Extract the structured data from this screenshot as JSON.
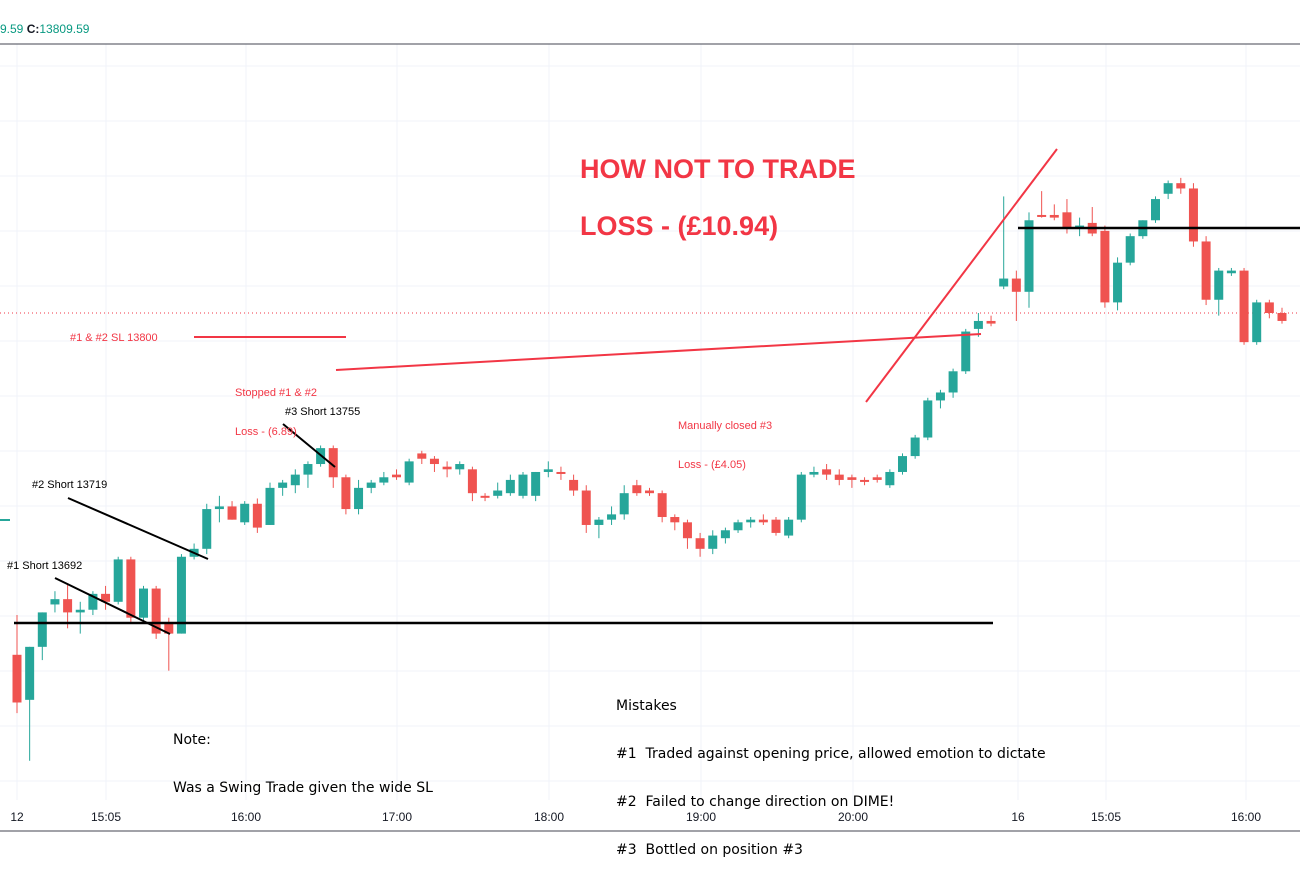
{
  "header": {
    "partial_value": "9.59",
    "close_label": "C:",
    "close_value": "13809.59"
  },
  "chart_data": {
    "type": "candlestick",
    "title": "",
    "x_ticks": [
      "12",
      "15:05",
      "16:00",
      "17:00",
      "18:00",
      "19:00",
      "20:00",
      "16",
      "15:05",
      "16:00"
    ],
    "price_levels": {
      "opening_line": 13692,
      "stop_loss": 13800,
      "dotted_current": 13806
    },
    "candles": [
      {
        "o": 13680,
        "h": 13695,
        "l": 13658,
        "c": 13662,
        "dir": "down"
      },
      {
        "o": 13663,
        "h": 13683,
        "l": 13640,
        "c": 13683,
        "dir": "up"
      },
      {
        "o": 13683,
        "h": 13696,
        "l": 13678,
        "c": 13696,
        "dir": "up"
      },
      {
        "o": 13699,
        "h": 13704,
        "l": 13696,
        "c": 13701,
        "dir": "up"
      },
      {
        "o": 13701,
        "h": 13707,
        "l": 13690,
        "c": 13696,
        "dir": "down"
      },
      {
        "o": 13697,
        "h": 13700,
        "l": 13688,
        "c": 13696,
        "dir": "up"
      },
      {
        "o": 13697,
        "h": 13704,
        "l": 13695,
        "c": 13703,
        "dir": "up"
      },
      {
        "o": 13703,
        "h": 13706,
        "l": 13697,
        "c": 13700,
        "dir": "down"
      },
      {
        "o": 13700,
        "h": 13717,
        "l": 13699,
        "c": 13716,
        "dir": "up"
      },
      {
        "o": 13716,
        "h": 13717,
        "l": 13692,
        "c": 13694,
        "dir": "down"
      },
      {
        "o": 13694,
        "h": 13706,
        "l": 13692,
        "c": 13705,
        "dir": "up"
      },
      {
        "o": 13705,
        "h": 13706,
        "l": 13686,
        "c": 13688,
        "dir": "down"
      },
      {
        "o": 13688,
        "h": 13694,
        "l": 13674,
        "c": 13692,
        "dir": "down"
      },
      {
        "o": 13688,
        "h": 13718,
        "l": 13688,
        "c": 13717,
        "dir": "up"
      },
      {
        "o": 13717,
        "h": 13722,
        "l": 13716,
        "c": 13720,
        "dir": "up"
      },
      {
        "o": 13720,
        "h": 13737,
        "l": 13718,
        "c": 13735,
        "dir": "up"
      },
      {
        "o": 13735,
        "h": 13740,
        "l": 13730,
        "c": 13736,
        "dir": "up"
      },
      {
        "o": 13736,
        "h": 13738,
        "l": 13731,
        "c": 13731,
        "dir": "down"
      },
      {
        "o": 13730,
        "h": 13738,
        "l": 13729,
        "c": 13737,
        "dir": "up"
      },
      {
        "o": 13737,
        "h": 13739,
        "l": 13726,
        "c": 13728,
        "dir": "down"
      },
      {
        "o": 13729,
        "h": 13745,
        "l": 13729,
        "c": 13743,
        "dir": "up"
      },
      {
        "o": 13743,
        "h": 13746,
        "l": 13740,
        "c": 13745,
        "dir": "up"
      },
      {
        "o": 13744,
        "h": 13750,
        "l": 13741,
        "c": 13748,
        "dir": "up"
      },
      {
        "o": 13748,
        "h": 13753,
        "l": 13743,
        "c": 13752,
        "dir": "up"
      },
      {
        "o": 13752,
        "h": 13759,
        "l": 13751,
        "c": 13758,
        "dir": "up"
      },
      {
        "o": 13758,
        "h": 13759,
        "l": 13743,
        "c": 13747,
        "dir": "down"
      },
      {
        "o": 13747,
        "h": 13748,
        "l": 13733,
        "c": 13735,
        "dir": "down"
      },
      {
        "o": 13735,
        "h": 13746,
        "l": 13733,
        "c": 13743,
        "dir": "up"
      },
      {
        "o": 13743,
        "h": 13746,
        "l": 13741,
        "c": 13745,
        "dir": "up"
      },
      {
        "o": 13745,
        "h": 13749,
        "l": 13744,
        "c": 13747,
        "dir": "up"
      },
      {
        "o": 13748,
        "h": 13750,
        "l": 13746,
        "c": 13747,
        "dir": "down"
      },
      {
        "o": 13745,
        "h": 13754,
        "l": 13744,
        "c": 13753,
        "dir": "up"
      },
      {
        "o": 13756,
        "h": 13757,
        "l": 13752,
        "c": 13754,
        "dir": "down"
      },
      {
        "o": 13754,
        "h": 13755,
        "l": 13749,
        "c": 13752,
        "dir": "down"
      },
      {
        "o": 13750,
        "h": 13753,
        "l": 13747,
        "c": 13751,
        "dir": "down"
      },
      {
        "o": 13750,
        "h": 13753,
        "l": 13748,
        "c": 13752,
        "dir": "up"
      },
      {
        "o": 13750,
        "h": 13751,
        "l": 13738,
        "c": 13741,
        "dir": "down"
      },
      {
        "o": 13740,
        "h": 13741,
        "l": 13738,
        "c": 13740,
        "dir": "down"
      },
      {
        "o": 13740,
        "h": 13745,
        "l": 13739,
        "c": 13742,
        "dir": "up"
      },
      {
        "o": 13741,
        "h": 13748,
        "l": 13740,
        "c": 13746,
        "dir": "up"
      },
      {
        "o": 13740,
        "h": 13749,
        "l": 13739,
        "c": 13748,
        "dir": "up"
      },
      {
        "o": 13740,
        "h": 13749,
        "l": 13738,
        "c": 13749,
        "dir": "up"
      },
      {
        "o": 13749,
        "h": 13753,
        "l": 13747,
        "c": 13750,
        "dir": "up"
      },
      {
        "o": 13749,
        "h": 13751,
        "l": 13746,
        "c": 13749,
        "dir": "down"
      },
      {
        "o": 13746,
        "h": 13748,
        "l": 13740,
        "c": 13742,
        "dir": "down"
      },
      {
        "o": 13742,
        "h": 13744,
        "l": 13726,
        "c": 13729,
        "dir": "down"
      },
      {
        "o": 13729,
        "h": 13732,
        "l": 13724,
        "c": 13731,
        "dir": "up"
      },
      {
        "o": 13731,
        "h": 13736,
        "l": 13729,
        "c": 13733,
        "dir": "up"
      },
      {
        "o": 13733,
        "h": 13744,
        "l": 13731,
        "c": 13741,
        "dir": "up"
      },
      {
        "o": 13741,
        "h": 13746,
        "l": 13740,
        "c": 13744,
        "dir": "down"
      },
      {
        "o": 13742,
        "h": 13743,
        "l": 13740,
        "c": 13741,
        "dir": "down"
      },
      {
        "o": 13741,
        "h": 13742,
        "l": 13730,
        "c": 13732,
        "dir": "down"
      },
      {
        "o": 13732,
        "h": 13733,
        "l": 13727,
        "c": 13730,
        "dir": "down"
      },
      {
        "o": 13730,
        "h": 13731,
        "l": 13720,
        "c": 13724,
        "dir": "down"
      },
      {
        "o": 13724,
        "h": 13726,
        "l": 13717,
        "c": 13720,
        "dir": "down"
      },
      {
        "o": 13720,
        "h": 13727,
        "l": 13718,
        "c": 13725,
        "dir": "up"
      },
      {
        "o": 13724,
        "h": 13728,
        "l": 13722,
        "c": 13727,
        "dir": "up"
      },
      {
        "o": 13727,
        "h": 13731,
        "l": 13726,
        "c": 13730,
        "dir": "up"
      },
      {
        "o": 13730,
        "h": 13732,
        "l": 13728,
        "c": 13731,
        "dir": "up"
      },
      {
        "o": 13731,
        "h": 13733,
        "l": 13729,
        "c": 13730,
        "dir": "down"
      },
      {
        "o": 13731,
        "h": 13732,
        "l": 13725,
        "c": 13726,
        "dir": "down"
      },
      {
        "o": 13725,
        "h": 13732,
        "l": 13724,
        "c": 13731,
        "dir": "up"
      },
      {
        "o": 13731,
        "h": 13749,
        "l": 13730,
        "c": 13748,
        "dir": "up"
      },
      {
        "o": 13748,
        "h": 13751,
        "l": 13747,
        "c": 13749,
        "dir": "up"
      },
      {
        "o": 13750,
        "h": 13752,
        "l": 13746,
        "c": 13748,
        "dir": "down"
      },
      {
        "o": 13748,
        "h": 13750,
        "l": 13744,
        "c": 13746,
        "dir": "down"
      },
      {
        "o": 13747,
        "h": 13748,
        "l": 13743,
        "c": 13746,
        "dir": "down"
      },
      {
        "o": 13746,
        "h": 13747,
        "l": 13744,
        "c": 13746,
        "dir": "down"
      },
      {
        "o": 13746,
        "h": 13748,
        "l": 13745,
        "c": 13747,
        "dir": "down"
      },
      {
        "o": 13744,
        "h": 13750,
        "l": 13743,
        "c": 13749,
        "dir": "up"
      },
      {
        "o": 13749,
        "h": 13756,
        "l": 13748,
        "c": 13755,
        "dir": "up"
      },
      {
        "o": 13755,
        "h": 13763,
        "l": 13754,
        "c": 13762,
        "dir": "up"
      },
      {
        "o": 13762,
        "h": 13777,
        "l": 13761,
        "c": 13776,
        "dir": "up"
      },
      {
        "o": 13776,
        "h": 13780,
        "l": 13773,
        "c": 13779,
        "dir": "up"
      },
      {
        "o": 13779,
        "h": 13788,
        "l": 13777,
        "c": 13787,
        "dir": "up"
      },
      {
        "o": 13787,
        "h": 13803,
        "l": 13786,
        "c": 13802,
        "dir": "up"
      },
      {
        "o": 13803,
        "h": 13809,
        "l": 13800,
        "c": 13806,
        "dir": "up"
      },
      {
        "o": 13806,
        "h": 13808,
        "l": 13804,
        "c": 13805,
        "dir": "down"
      },
      {
        "o": 13819,
        "h": 13853,
        "l": 13818,
        "c": 13822,
        "dir": "up"
      },
      {
        "o": 13822,
        "h": 13825,
        "l": 13806,
        "c": 13817,
        "dir": "down"
      },
      {
        "o": 13817,
        "h": 13847,
        "l": 13811,
        "c": 13844,
        "dir": "up"
      },
      {
        "o": 13846,
        "h": 13855,
        "l": 13845,
        "c": 13846,
        "dir": "down"
      },
      {
        "o": 13846,
        "h": 13850,
        "l": 13844,
        "c": 13845,
        "dir": "down"
      },
      {
        "o": 13847,
        "h": 13852,
        "l": 13839,
        "c": 13841,
        "dir": "down"
      },
      {
        "o": 13841,
        "h": 13845,
        "l": 13838,
        "c": 13842,
        "dir": "up"
      },
      {
        "o": 13843,
        "h": 13849,
        "l": 13838,
        "c": 13839,
        "dir": "down"
      },
      {
        "o": 13840,
        "h": 13842,
        "l": 13811,
        "c": 13813,
        "dir": "down"
      },
      {
        "o": 13813,
        "h": 13830,
        "l": 13810,
        "c": 13828,
        "dir": "up"
      },
      {
        "o": 13828,
        "h": 13839,
        "l": 13827,
        "c": 13838,
        "dir": "up"
      },
      {
        "o": 13838,
        "h": 13844,
        "l": 13837,
        "c": 13844,
        "dir": "up"
      },
      {
        "o": 13844,
        "h": 13853,
        "l": 13843,
        "c": 13852,
        "dir": "up"
      },
      {
        "o": 13854,
        "h": 13859,
        "l": 13852,
        "c": 13858,
        "dir": "up"
      },
      {
        "o": 13858,
        "h": 13860,
        "l": 13854,
        "c": 13856,
        "dir": "down"
      },
      {
        "o": 13856,
        "h": 13858,
        "l": 13834,
        "c": 13836,
        "dir": "down"
      },
      {
        "o": 13836,
        "h": 13838,
        "l": 13812,
        "c": 13814,
        "dir": "down"
      },
      {
        "o": 13814,
        "h": 13826,
        "l": 13808,
        "c": 13825,
        "dir": "up"
      },
      {
        "o": 13824,
        "h": 13826,
        "l": 13823,
        "c": 13825,
        "dir": "up"
      },
      {
        "o": 13825,
        "h": 13826,
        "l": 13797,
        "c": 13798,
        "dir": "down"
      },
      {
        "o": 13798,
        "h": 13814,
        "l": 13797,
        "c": 13813,
        "dir": "up"
      },
      {
        "o": 13813,
        "h": 13814,
        "l": 13807,
        "c": 13809,
        "dir": "down"
      },
      {
        "o": 13809,
        "h": 13811,
        "l": 13805,
        "c": 13806,
        "dir": "down"
      }
    ]
  },
  "annotations": {
    "title_line1": "HOW NOT TO TRADE",
    "title_line2": "LOSS - (£10.94)",
    "sl_label": "#1 & #2 SL 13800",
    "stopped_line1": "Stopped #1 & #2",
    "stopped_line2": "Loss - (6.89)",
    "manual_line1": "Manually closed #3",
    "manual_line2": "Loss - (£4.05)",
    "short1": "#1 Short 13692",
    "short2": "#2 Short 13719",
    "short3": "#3 Short 13755",
    "note_line1": "Note:",
    "note_line2": "Was a Swing Trade given the wide SL",
    "mistakes_title": "Mistakes",
    "mistake1": "#1  Traded against opening price, allowed emotion to dictate",
    "mistake2": "#2  Failed to change direction on DIME!",
    "mistake3": "#3  Bottled on position #3"
  },
  "colors": {
    "up": "#26a69a",
    "down": "#ef5350",
    "annotation": "#f23645",
    "grid": "#f0f3fa",
    "line": "#000000"
  }
}
